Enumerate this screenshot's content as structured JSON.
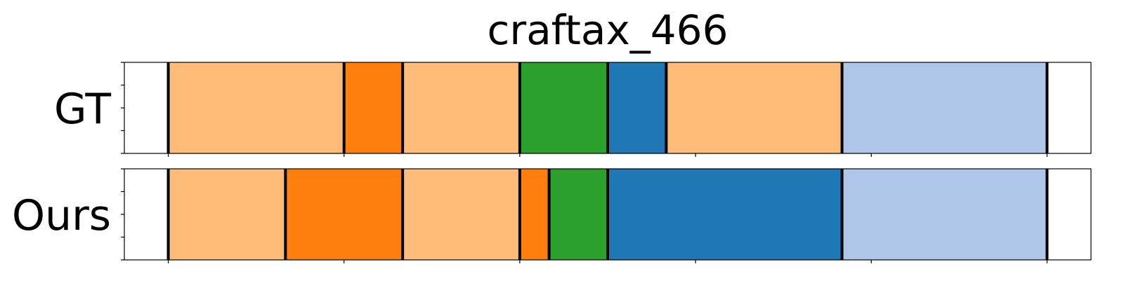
{
  "chart_data": {
    "type": "segmentation-bar",
    "title": "craftax_466",
    "xlim": [
      0,
      33
    ],
    "colors": {
      "light_orange": "#ffbb78",
      "orange": "#ff7f0e",
      "green": "#2ca02c",
      "blue": "#1f77b4",
      "light_blue": "#aec7e8"
    },
    "rows": [
      {
        "label": "GT",
        "segments": [
          {
            "start": 1.5,
            "end": 7.5,
            "color": "light_orange"
          },
          {
            "start": 7.5,
            "end": 9.5,
            "color": "orange"
          },
          {
            "start": 9.5,
            "end": 13.5,
            "color": "light_orange"
          },
          {
            "start": 13.5,
            "end": 16.5,
            "color": "green"
          },
          {
            "start": 16.5,
            "end": 18.5,
            "color": "blue"
          },
          {
            "start": 18.5,
            "end": 24.5,
            "color": "light_orange"
          },
          {
            "start": 24.5,
            "end": 31.5,
            "color": "light_blue"
          }
        ]
      },
      {
        "label": "Ours",
        "segments": [
          {
            "start": 1.5,
            "end": 5.5,
            "color": "light_orange"
          },
          {
            "start": 5.5,
            "end": 9.5,
            "color": "orange"
          },
          {
            "start": 9.5,
            "end": 13.5,
            "color": "light_orange"
          },
          {
            "start": 13.5,
            "end": 14.5,
            "color": "orange"
          },
          {
            "start": 14.5,
            "end": 16.5,
            "color": "green"
          },
          {
            "start": 16.5,
            "end": 24.5,
            "color": "blue"
          },
          {
            "start": 24.5,
            "end": 31.5,
            "color": "light_blue"
          }
        ]
      }
    ],
    "x_ticks": [
      1.5,
      7.5,
      13.5,
      19.5,
      25.5,
      31.5
    ],
    "x_tick_labels_shown": false,
    "y_ticks_per_row": 5,
    "y_tick_labels_shown": false,
    "grid": false
  }
}
